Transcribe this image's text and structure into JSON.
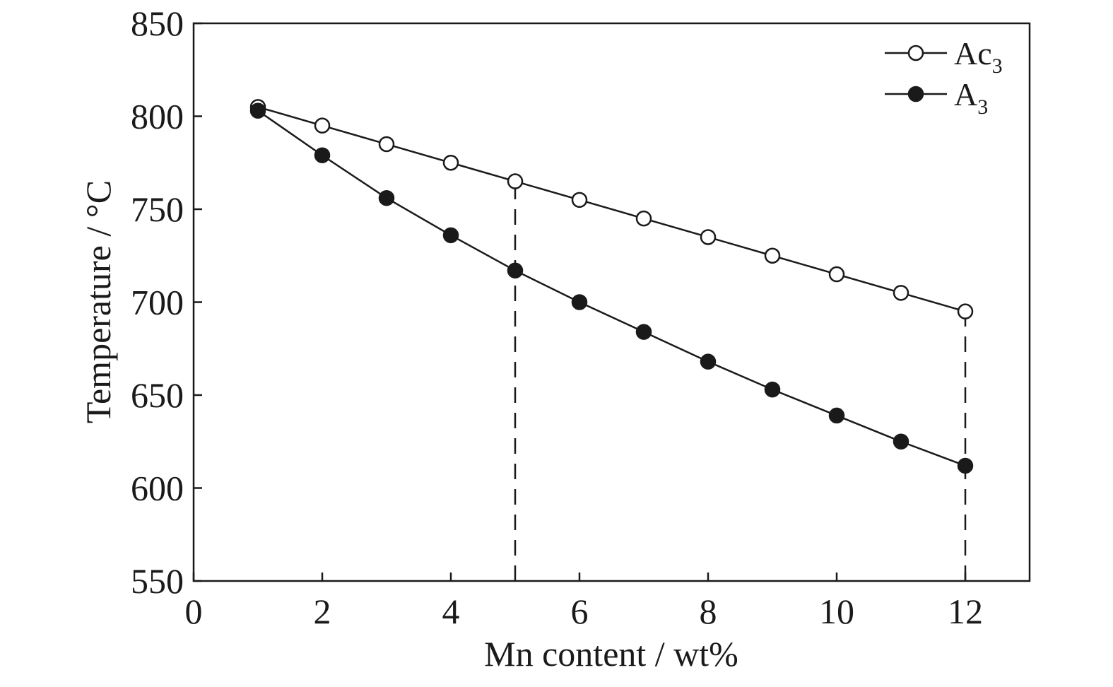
{
  "chart_data": {
    "type": "line",
    "xlabel": "Mn content / wt%",
    "ylabel": "Temperature / °C",
    "xlim": [
      0,
      13
    ],
    "ylim": [
      550,
      850
    ],
    "x_ticks": [
      0,
      2,
      4,
      6,
      8,
      10,
      12
    ],
    "y_ticks": [
      550,
      600,
      650,
      700,
      750,
      800,
      850
    ],
    "grid": false,
    "legend_position": "top-right",
    "x": [
      1,
      2,
      3,
      4,
      5,
      6,
      7,
      8,
      9,
      10,
      11,
      12
    ],
    "series": [
      {
        "name": "Ac",
        "name_subscript": "3",
        "marker": "open-circle",
        "values": [
          805,
          795,
          785,
          775,
          765,
          755,
          745,
          735,
          725,
          715,
          705,
          695
        ]
      },
      {
        "name": "A",
        "name_subscript": "3",
        "marker": "filled-circle",
        "values": [
          803,
          779,
          756,
          736,
          717,
          700,
          684,
          668,
          653,
          639,
          625,
          612
        ]
      }
    ],
    "reference_lines": [
      {
        "type": "vertical-dashed",
        "x": 5,
        "y_from": 550,
        "y_to": 765
      },
      {
        "type": "vertical-dashed",
        "x": 12,
        "y_from": 550,
        "y_to": 695
      }
    ]
  }
}
